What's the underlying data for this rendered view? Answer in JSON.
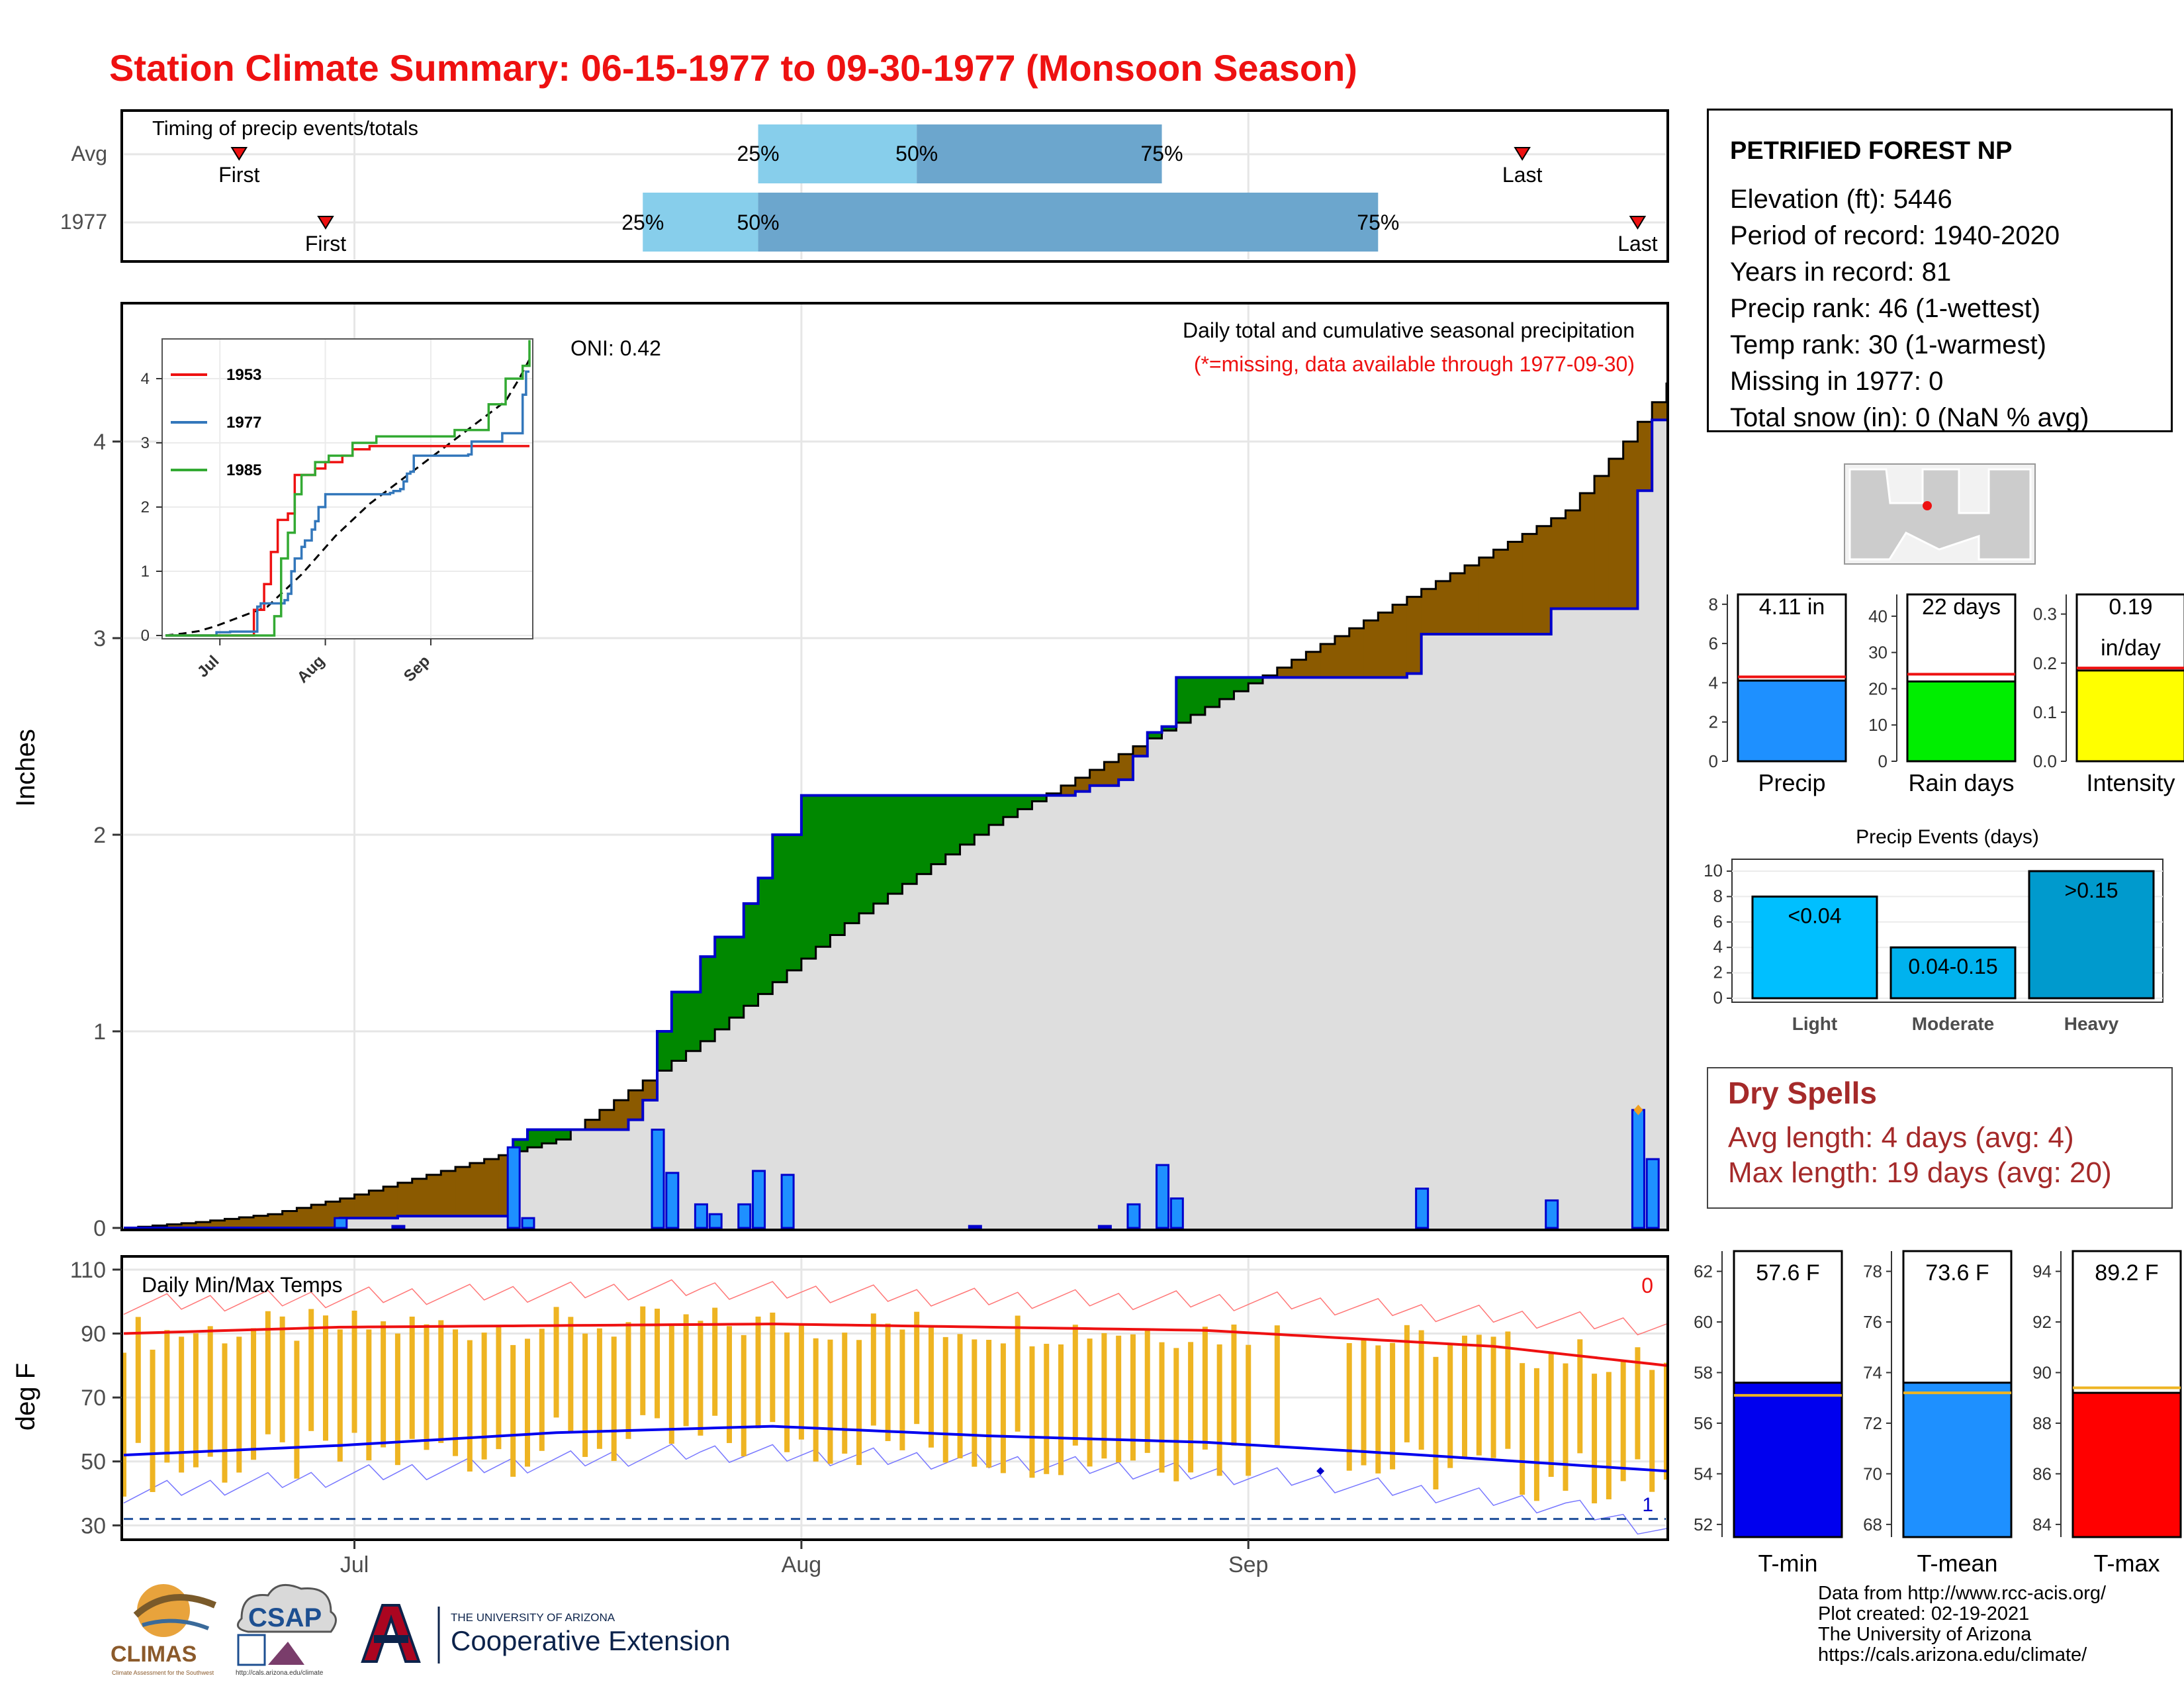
{
  "title": "Station Climate Summary: 06-15-1977 to 09-30-1977 (Monsoon Season)",
  "timing": {
    "label": "Timing of precip events/totals",
    "rows": [
      "Avg",
      "1977"
    ],
    "avg": {
      "first": "06-23",
      "q25": "07-29",
      "q50": "08-09",
      "q75": "08-26",
      "last": "09-20"
    },
    "year": {
      "first": "06-29",
      "q25": "07-21",
      "q50": "07-29",
      "q75": "09-10",
      "last": "09-28"
    },
    "first_label": "First",
    "last_label": "Last",
    "q25_label": "25%",
    "q50_label": "50%",
    "q75_label": "75%"
  },
  "main": {
    "ylabel": "Inches",
    "oni": "ONI: 0.42",
    "legend_title": "Daily total and cumulative seasonal precipitation",
    "legend_note": "(*=missing, data available through 1977-09-30)"
  },
  "inset": {
    "series": [
      {
        "name": "1953",
        "color": "#ee1111"
      },
      {
        "name": "1977",
        "color": "#3377bb"
      },
      {
        "name": "1985",
        "color": "#33aa33"
      }
    ],
    "months": [
      "Jul",
      "Aug",
      "Sep"
    ]
  },
  "temp": {
    "label": "Daily Min/Max Temps",
    "ylabel": "deg F",
    "top_count": "0",
    "bottom_count": "1"
  },
  "x_months": [
    "Jul",
    "Aug",
    "Sep"
  ],
  "station": {
    "name": "PETRIFIED FOREST NP",
    "lines": [
      "Elevation (ft): 5446",
      "Period of record: 1940-2020",
      "Years in record: 81",
      "Precip rank: 46 (1-wettest)",
      "Temp rank: 30 (1-warmest)",
      "Missing in 1977: 0",
      "Total snow (in): 0 (NaN % avg)"
    ]
  },
  "summary_bars": [
    {
      "label": "Precip",
      "value_text": "4.11 in",
      "color": "#1e90ff"
    },
    {
      "label": "Rain days",
      "value_text": "22 days",
      "color": "#00ee00"
    },
    {
      "label": "Intensity",
      "value_text": "0.19",
      "value_text2": "in/day",
      "color": "#ffff00"
    }
  ],
  "events": {
    "title": "Precip Events (days)",
    "bars": [
      {
        "label": "Light",
        "text": "<0.04",
        "value": 8,
        "color": "#00bfff"
      },
      {
        "label": "Moderate",
        "text": "0.04-0.15",
        "value": 4,
        "color": "#00b2ee"
      },
      {
        "label": "Heavy",
        "text": ">0.15",
        "value": 10,
        "color": "#009acd"
      }
    ]
  },
  "dry_spells": {
    "title": "Dry Spells",
    "avg": "Avg length: 4 days (avg: 4)",
    "max": "Max length: 19 days (avg: 20)"
  },
  "temp_bars": [
    {
      "label": "T-min",
      "value_text": "57.6 F",
      "color": "#0000ee"
    },
    {
      "label": "T-mean",
      "value_text": "73.6 F",
      "color": "#1e90ff"
    },
    {
      "label": "T-max",
      "value_text": "89.2 F",
      "color": "#ff0000"
    }
  ],
  "credits": [
    "Data from http://www.rcc-acis.org/",
    "Plot created: 02-19-2021",
    "The University of Arizona",
    "https://cals.arizona.edu/climate/"
  ],
  "logos": {
    "climas": "CLIMAS",
    "climas_sub": "Climate Assessment for the Southwest",
    "csap": "CSAP",
    "csap_url": "http://cals.arizona.edu/climate",
    "ua_line1": "THE UNIVERSITY OF ARIZONA",
    "ua_line2": "Cooperative Extension"
  },
  "chart_data": [
    {
      "type": "area",
      "title": "Daily total and cumulative seasonal precipitation",
      "ylabel": "Inches",
      "ylim": [
        0,
        4.6
      ],
      "x_range": [
        "06-15",
        "09-30"
      ],
      "x_ticks": [
        "Jul",
        "Aug",
        "Sep"
      ],
      "cumulative_avg": [
        [
          0,
          0
        ],
        [
          5,
          0.03
        ],
        [
          10,
          0.07
        ],
        [
          15,
          0.15
        ],
        [
          20,
          0.25
        ],
        [
          25,
          0.35
        ],
        [
          30,
          0.45
        ],
        [
          35,
          0.7
        ],
        [
          40,
          0.95
        ],
        [
          45,
          1.25
        ],
        [
          50,
          1.55
        ],
        [
          55,
          1.8
        ],
        [
          60,
          2.05
        ],
        [
          65,
          2.25
        ],
        [
          70,
          2.45
        ],
        [
          75,
          2.65
        ],
        [
          80,
          2.85
        ],
        [
          85,
          3.05
        ],
        [
          90,
          3.25
        ],
        [
          95,
          3.45
        ],
        [
          100,
          3.65
        ],
        [
          104,
          4.0
        ],
        [
          107,
          4.3
        ]
      ],
      "cumulative_1977": [
        [
          0,
          0
        ],
        [
          14,
          0
        ],
        [
          15,
          0.05
        ],
        [
          19,
          0.06
        ],
        [
          22,
          0.06
        ],
        [
          26,
          0.06
        ],
        [
          27,
          0.45
        ],
        [
          28,
          0.5
        ],
        [
          34,
          0.5
        ],
        [
          35,
          0.55
        ],
        [
          36,
          0.65
        ],
        [
          37,
          1.0
        ],
        [
          38,
          1.2
        ],
        [
          40,
          1.38
        ],
        [
          41,
          1.48
        ],
        [
          43,
          1.65
        ],
        [
          44,
          1.78
        ],
        [
          45,
          2.0
        ],
        [
          47,
          2.2
        ],
        [
          58,
          2.2
        ],
        [
          66,
          2.22
        ],
        [
          67,
          2.25
        ],
        [
          69,
          2.28
        ],
        [
          70,
          2.4
        ],
        [
          71,
          2.52
        ],
        [
          72,
          2.55
        ],
        [
          73,
          2.8
        ],
        [
          80,
          2.8
        ],
        [
          89,
          2.82
        ],
        [
          90,
          3.02
        ],
        [
          99,
          3.15
        ],
        [
          100,
          3.15
        ],
        [
          104,
          3.15
        ],
        [
          105,
          3.75
        ],
        [
          106,
          4.11
        ],
        [
          107,
          4.11
        ]
      ],
      "daily_1977": [
        {
          "day": 15,
          "value": 0.05
        },
        {
          "day": 19,
          "value": 0.01
        },
        {
          "day": 27,
          "value": 0.41
        },
        {
          "day": 28,
          "value": 0.05
        },
        {
          "day": 37,
          "value": 0.5
        },
        {
          "day": 38,
          "value": 0.28
        },
        {
          "day": 40,
          "value": 0.12
        },
        {
          "day": 41,
          "value": 0.07
        },
        {
          "day": 43,
          "value": 0.12
        },
        {
          "day": 44,
          "value": 0.29
        },
        {
          "day": 46,
          "value": 0.27
        },
        {
          "day": 59,
          "value": 0.01
        },
        {
          "day": 68,
          "value": 0.01
        },
        {
          "day": 70,
          "value": 0.12
        },
        {
          "day": 72,
          "value": 0.32
        },
        {
          "day": 73,
          "value": 0.15
        },
        {
          "day": 90,
          "value": 0.2
        },
        {
          "day": 99,
          "value": 0.14
        },
        {
          "day": 105,
          "value": 0.6
        },
        {
          "day": 106,
          "value": 0.35
        }
      ]
    },
    {
      "type": "line",
      "title": "Daily Min/Max Temps",
      "ylabel": "deg F",
      "ylim": [
        25,
        110
      ],
      "yticks": [
        30,
        50,
        70,
        90,
        110
      ],
      "x_ticks": [
        "Jul",
        "Aug",
        "Sep"
      ],
      "avg_max": [
        [
          0,
          90
        ],
        [
          15,
          92
        ],
        [
          45,
          93
        ],
        [
          75,
          91
        ],
        [
          95,
          86
        ],
        [
          107,
          80
        ]
      ],
      "avg_min": [
        [
          0,
          52
        ],
        [
          15,
          55
        ],
        [
          30,
          59
        ],
        [
          45,
          61
        ],
        [
          60,
          58
        ],
        [
          75,
          56
        ],
        [
          90,
          52
        ],
        [
          107,
          47
        ]
      ],
      "record_high": [
        [
          0,
          99
        ],
        [
          20,
          102
        ],
        [
          40,
          104
        ],
        [
          60,
          101
        ],
        [
          80,
          100
        ],
        [
          107,
          92
        ]
      ],
      "record_low": [
        [
          0,
          40
        ],
        [
          20,
          47
        ],
        [
          40,
          53
        ],
        [
          60,
          50
        ],
        [
          80,
          45
        ],
        [
          100,
          36
        ],
        [
          107,
          28
        ]
      ],
      "freeze_line": 32
    }
  ]
}
